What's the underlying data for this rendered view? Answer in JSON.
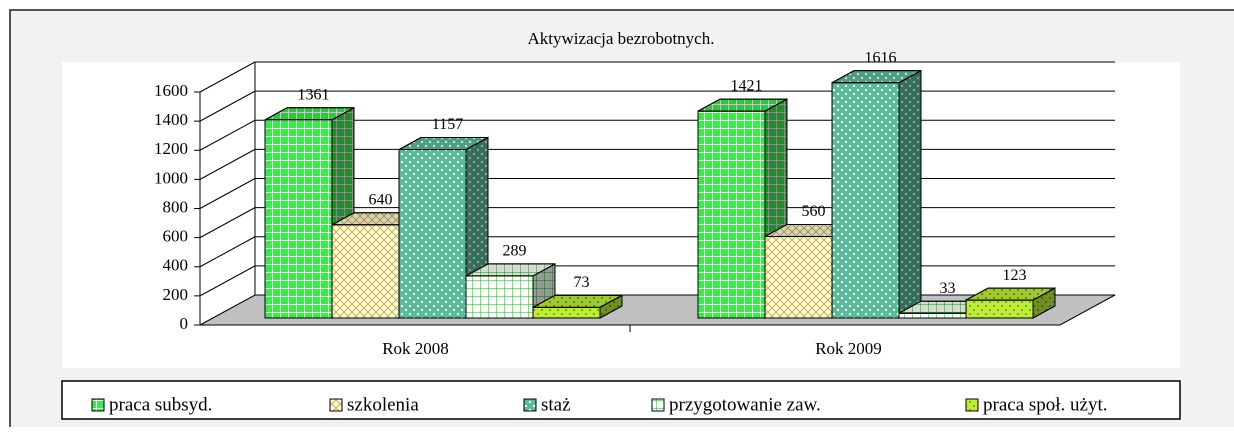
{
  "chart_data": {
    "type": "bar3d",
    "title": "Aktywizacja bezrobotnych.",
    "categories": [
      "Rok 2008",
      "Rok 2009"
    ],
    "series": [
      {
        "name": "praca subsyd.",
        "color": "#33ee44",
        "values": [
          1361,
          1421
        ]
      },
      {
        "name": "szkolenia",
        "color": "#fffccc",
        "values": [
          640,
          560
        ]
      },
      {
        "name": "staż",
        "color": "#55bb99",
        "values": [
          1157,
          1616
        ]
      },
      {
        "name": "przygotowanie zaw.",
        "color": "#ffffff",
        "values": [
          289,
          33
        ]
      },
      {
        "name": "praca społ. użyt.",
        "color": "#bbee33",
        "values": [
          73,
          123
        ]
      }
    ],
    "ylim": [
      0,
      1600
    ],
    "yticks": [
      0,
      200,
      400,
      600,
      800,
      1000,
      1200,
      1400,
      1600
    ],
    "grid": true,
    "legend": "bottom"
  }
}
